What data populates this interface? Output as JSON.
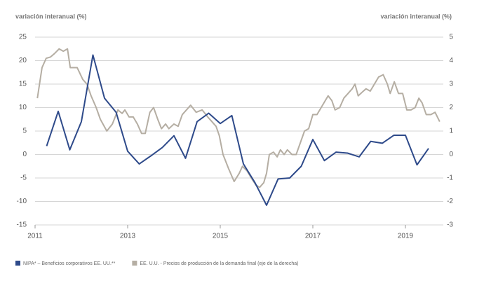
{
  "chart_data": {
    "type": "line",
    "ylabel": "variación interanual (%)",
    "y2label": "variación interanual (%)",
    "xlim": [
      2011,
      2019.75
    ],
    "xticks": [
      2011,
      2013,
      2015,
      2017,
      2019
    ],
    "ylim": [
      -15,
      25
    ],
    "yticks": [
      25,
      20,
      15,
      10,
      5,
      0,
      -5,
      -10,
      -15
    ],
    "y2lim": [
      -3,
      5
    ],
    "y2ticks": [
      5,
      4,
      3,
      2,
      1,
      0,
      -1,
      -2,
      -3
    ],
    "grid": true,
    "legend": "bottom",
    "series": [
      {
        "name": "NIPA* – Beneficios corporativos EE. UU.**",
        "color": "#2e4a8a",
        "x": [
          2011.25,
          2011.5,
          2011.75,
          2012,
          2012.25,
          2012.5,
          2012.75,
          2013,
          2013.25,
          2013.5,
          2013.75,
          2014,
          2014.25,
          2014.5,
          2014.75,
          2015,
          2015.25,
          2015.5,
          2015.75,
          2016,
          2016.25,
          2016.5,
          2016.75,
          2017,
          2017.25,
          2017.5,
          2017.75,
          2018,
          2018.25,
          2018.5,
          2018.75,
          2019,
          2019.25,
          2019.5
        ],
        "values": [
          1.8,
          9.2,
          1.0,
          7.0,
          21.2,
          12.0,
          9.0,
          0.7,
          -2.0,
          -0.3,
          1.5,
          4.0,
          -0.8,
          7.0,
          8.8,
          6.6,
          8.3,
          -2.0,
          -6.0,
          -10.8,
          -5.2,
          -5.0,
          -2.5,
          3.2,
          -1.3,
          0.5,
          0.3,
          -0.5,
          2.8,
          2.4,
          4.1,
          4.1,
          -2.2,
          1.3
        ]
      },
      {
        "name": "EE. U.U. - Precios de producción de la demanda final (eje de la derecha)",
        "color": "#b5aea3",
        "axis": "y2",
        "x": [
          2011.05,
          2011.15,
          2011.24,
          2011.33,
          2011.42,
          2011.52,
          2011.61,
          2011.7,
          2011.76,
          2011.91,
          2012.03,
          2012.12,
          2012.21,
          2012.32,
          2012.41,
          2012.55,
          2012.67,
          2012.79,
          2012.88,
          2012.94,
          2013.03,
          2013.12,
          2013.21,
          2013.3,
          2013.38,
          2013.48,
          2013.56,
          2013.65,
          2013.73,
          2013.82,
          2013.89,
          2014.0,
          2014.09,
          2014.18,
          2014.36,
          2014.48,
          2014.61,
          2014.73,
          2014.82,
          2014.91,
          2014.98,
          2015.06,
          2015.18,
          2015.3,
          2015.41,
          2015.48,
          2015.58,
          2015.67,
          2015.77,
          2015.85,
          2015.94,
          2016.0,
          2016.06,
          2016.15,
          2016.23,
          2016.3,
          2016.38,
          2016.45,
          2016.55,
          2016.64,
          2016.73,
          2016.82,
          2016.91,
          2017.0,
          2017.09,
          2017.18,
          2017.24,
          2017.33,
          2017.41,
          2017.48,
          2017.58,
          2017.67,
          2017.76,
          2017.85,
          2017.91,
          2017.98,
          2018.09,
          2018.15,
          2018.24,
          2018.33,
          2018.42,
          2018.52,
          2018.61,
          2018.67,
          2018.76,
          2018.85,
          2018.94,
          2019.03,
          2019.12,
          2019.21,
          2019.29,
          2019.36,
          2019.45,
          2019.55,
          2019.64,
          2019.74
        ],
        "values": [
          2.4,
          3.7,
          4.1,
          4.15,
          4.3,
          4.5,
          4.4,
          4.5,
          3.7,
          3.7,
          3.2,
          3.0,
          2.5,
          2.0,
          1.5,
          1.0,
          1.3,
          1.9,
          1.75,
          1.9,
          1.6,
          1.6,
          1.3,
          0.9,
          0.9,
          1.8,
          2.0,
          1.5,
          1.1,
          1.3,
          1.1,
          1.3,
          1.2,
          1.7,
          2.1,
          1.8,
          1.9,
          1.6,
          1.4,
          1.2,
          0.8,
          0.0,
          -0.6,
          -1.15,
          -0.8,
          -0.5,
          -0.7,
          -1.0,
          -1.3,
          -1.4,
          -1.2,
          -0.8,
          0.0,
          0.1,
          -0.1,
          0.2,
          0.0,
          0.2,
          0.0,
          0.0,
          0.5,
          1.0,
          1.1,
          1.7,
          1.7,
          2.0,
          2.2,
          2.5,
          2.3,
          1.9,
          2.0,
          2.4,
          2.6,
          2.8,
          3.0,
          2.5,
          2.7,
          2.8,
          2.7,
          3.0,
          3.3,
          3.4,
          3.0,
          2.6,
          3.1,
          2.6,
          2.6,
          1.9,
          1.9,
          2.0,
          2.4,
          2.2,
          1.7,
          1.7,
          1.8,
          1.4
        ]
      }
    ]
  }
}
